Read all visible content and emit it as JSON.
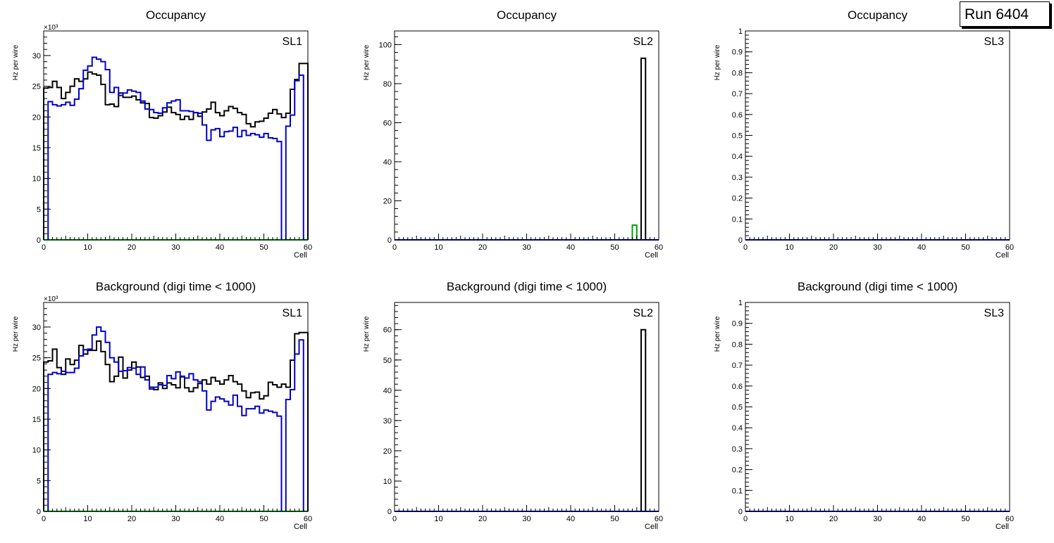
{
  "run_label": "Run 6404",
  "colors": {
    "black": "#000000",
    "blue": "#0000c8",
    "green": "#00a000",
    "axis": "#000000"
  },
  "chart_data": [
    {
      "type": "histogram",
      "title": "Occupancy",
      "label": "SL1",
      "xlabel": "Cell",
      "ylabel": "Hz per wire",
      "exponent_label": "×10³",
      "xlim": [
        0,
        60
      ],
      "ylim": [
        0,
        34
      ],
      "yticks": [
        0,
        5,
        10,
        15,
        20,
        25,
        30
      ],
      "series": [
        {
          "name": "black",
          "color": "#000000",
          "values": [
            24.7,
            24.8,
            25.8,
            24.8,
            23,
            24,
            25,
            26.2,
            25.8,
            26.2,
            27.3,
            27,
            26.8,
            25.3,
            22,
            22.1,
            21.7,
            23.9,
            23.2,
            23.2,
            23.4,
            22.8,
            22.3,
            22.2,
            19.9,
            19.8,
            20.2,
            20.8,
            21.6,
            20.7,
            20.4,
            19.6,
            20.1,
            19.6,
            20.7,
            20.1,
            20.8,
            21.3,
            22.4,
            20.7,
            20.2,
            21,
            21.7,
            21.4,
            20.7,
            20.4,
            18.9,
            18.4,
            19.2,
            19.3,
            19.8,
            20.6,
            21.2,
            20.5,
            19.9,
            20.6,
            24.5,
            26.1,
            28.7,
            28.7
          ]
        },
        {
          "name": "blue",
          "color": "#0000c8",
          "values": [
            0,
            22.5,
            22,
            21.8,
            22,
            22.4,
            21.9,
            22.9,
            24.6,
            27.6,
            28.3,
            29.7,
            29.4,
            29,
            27.7,
            24,
            24.8,
            23.5,
            23.9,
            24.4,
            24.2,
            24,
            22.6,
            21.3,
            21.2,
            20.7,
            20.6,
            21.5,
            22.3,
            22.6,
            22.8,
            21,
            21,
            20.9,
            20.7,
            20.6,
            18.7,
            16.2,
            17.9,
            18.1,
            16.8,
            17.6,
            17.7,
            18.3,
            16.8,
            17.8,
            17,
            17.3,
            17.1,
            16.7,
            17.3,
            16.6,
            16.5,
            16,
            0,
            18.5,
            20.3,
            25.9,
            26.8,
            0
          ]
        },
        {
          "name": "green",
          "color": "#00a000",
          "values": [
            0,
            0,
            0,
            0,
            0,
            0,
            0,
            0,
            0,
            0,
            0,
            0,
            0,
            0,
            0,
            0,
            0,
            0,
            0,
            0,
            0,
            0,
            0,
            0,
            0,
            0,
            0,
            0,
            0,
            0,
            0,
            0,
            0,
            0,
            0,
            0,
            0,
            0,
            0,
            0,
            0,
            0,
            0,
            0,
            0,
            0,
            0,
            0,
            0,
            0,
            0,
            0,
            0,
            0,
            0,
            0,
            0,
            0,
            0,
            0
          ]
        }
      ]
    },
    {
      "type": "histogram",
      "title": "Occupancy",
      "label": "SL2",
      "xlabel": "Cell",
      "ylabel": "Hz per wire",
      "exponent_label": "",
      "xlim": [
        0,
        60
      ],
      "ylim": [
        0,
        107
      ],
      "yticks": [
        0,
        20,
        40,
        60,
        80,
        100
      ],
      "series": [
        {
          "name": "black",
          "color": "#000000",
          "values": [
            0,
            0,
            0,
            0,
            0,
            0,
            0,
            0,
            0,
            0,
            0,
            0,
            0,
            0,
            0,
            0,
            0,
            0,
            0,
            0,
            0,
            0,
            0,
            0,
            0,
            0,
            0,
            0,
            0,
            0,
            0,
            0,
            0,
            0,
            0,
            0,
            0,
            0,
            0,
            0,
            0,
            0,
            0,
            0,
            0,
            0,
            0,
            0,
            0,
            0,
            0,
            0,
            0,
            0,
            0,
            0,
            93,
            0,
            0,
            0
          ]
        },
        {
          "name": "green",
          "color": "#00a000",
          "values": [
            0,
            0,
            0,
            0,
            0,
            0,
            0,
            0,
            0,
            0,
            0,
            0,
            0,
            0,
            0,
            0,
            0,
            0,
            0,
            0,
            0,
            0,
            0,
            0,
            0,
            0,
            0,
            0,
            0,
            0,
            0,
            0,
            0,
            0,
            0,
            0,
            0,
            0,
            0,
            0,
            0,
            0,
            0,
            0,
            0,
            0,
            0,
            0,
            0,
            0,
            0,
            0,
            0,
            0,
            7.5,
            0,
            0,
            0,
            0,
            0
          ]
        },
        {
          "name": "blue",
          "color": "#0000c8",
          "values": [
            0,
            0,
            0,
            0,
            0,
            0,
            0,
            0,
            0,
            0,
            0,
            0,
            0,
            0,
            0,
            0,
            0,
            0,
            0,
            0,
            0,
            0,
            0,
            0,
            0,
            0,
            0,
            0,
            0,
            0,
            0,
            0,
            0,
            0,
            0,
            0,
            0,
            0,
            0,
            0,
            0,
            0,
            0,
            0,
            0,
            0,
            0,
            0,
            0,
            0,
            0,
            0,
            0,
            0,
            0,
            0,
            0,
            0,
            0,
            0
          ]
        }
      ]
    },
    {
      "type": "histogram",
      "title": "Occupancy",
      "label": "SL3",
      "xlabel": "Cell",
      "ylabel": "Hz per wire",
      "exponent_label": "",
      "xlim": [
        0,
        60
      ],
      "ylim": [
        0,
        1
      ],
      "yticks": [
        0,
        0.1,
        0.2,
        0.3,
        0.4,
        0.5,
        0.6,
        0.7,
        0.8,
        0.9,
        1
      ],
      "series": [
        {
          "name": "blue",
          "color": "#0000c8",
          "values": [
            0,
            0,
            0,
            0,
            0,
            0,
            0,
            0,
            0,
            0,
            0,
            0,
            0,
            0,
            0,
            0,
            0,
            0,
            0,
            0,
            0,
            0,
            0,
            0,
            0,
            0,
            0,
            0,
            0,
            0,
            0,
            0,
            0,
            0,
            0,
            0,
            0,
            0,
            0,
            0,
            0,
            0,
            0,
            0,
            0,
            0,
            0,
            0,
            0,
            0,
            0,
            0,
            0,
            0,
            0,
            0,
            0,
            0,
            0,
            0
          ]
        }
      ]
    },
    {
      "type": "histogram",
      "title": "Background (digi time < 1000)",
      "label": "SL1",
      "xlabel": "Cell",
      "ylabel": "Hz per wire",
      "exponent_label": "×10³",
      "xlim": [
        0,
        60
      ],
      "ylim": [
        0,
        34
      ],
      "yticks": [
        0,
        5,
        10,
        15,
        20,
        25,
        30
      ],
      "series": [
        {
          "name": "black",
          "color": "#000000",
          "values": [
            24.3,
            24.5,
            26.4,
            23.4,
            22.3,
            24.8,
            23.9,
            24.6,
            27,
            25.6,
            26.2,
            26.2,
            27.7,
            26,
            23.9,
            21.1,
            22,
            25.1,
            21.7,
            23,
            24.3,
            23.5,
            21.8,
            22,
            20.2,
            19.8,
            20.9,
            20,
            20.9,
            20.6,
            20.1,
            21.9,
            20.1,
            19.5,
            20.1,
            20.8,
            21.4,
            20.7,
            21.8,
            21.2,
            20.7,
            21.4,
            22.1,
            21.1,
            20.7,
            19.6,
            18.5,
            19.3,
            19.4,
            18.3,
            18.8,
            21,
            20.6,
            20.2,
            20.7,
            20.2,
            24.6,
            28.9,
            29.1,
            29.1
          ]
        },
        {
          "name": "blue",
          "color": "#0000c8",
          "values": [
            0,
            22.3,
            22.6,
            22.4,
            22.8,
            22.6,
            22.6,
            23.3,
            25.3,
            26.3,
            26.4,
            28.7,
            30,
            29.3,
            27.5,
            25,
            24.3,
            22.8,
            22.9,
            23.4,
            23.3,
            22.3,
            23.5,
            21.4,
            19.9,
            20.2,
            20.6,
            20.5,
            22.1,
            21.6,
            22.7,
            22,
            21.7,
            22.4,
            21.4,
            21.1,
            19.6,
            16.5,
            17.9,
            18.6,
            18.3,
            17.9,
            17.3,
            18.9,
            17.1,
            15.6,
            16.7,
            16.7,
            17.1,
            16,
            16.5,
            16.3,
            16.1,
            15.5,
            0,
            18.2,
            19.8,
            25.6,
            27.9,
            0
          ]
        },
        {
          "name": "green",
          "color": "#00a000",
          "values": [
            0,
            0,
            0,
            0,
            0,
            0,
            0,
            0,
            0,
            0,
            0,
            0,
            0,
            0,
            0,
            0,
            0,
            0,
            0,
            0,
            0,
            0,
            0,
            0,
            0,
            0,
            0,
            0,
            0,
            0,
            0,
            0,
            0,
            0,
            0,
            0,
            0,
            0,
            0,
            0,
            0,
            0,
            0,
            0,
            0,
            0,
            0,
            0,
            0,
            0,
            0,
            0,
            0,
            0,
            0,
            0,
            0,
            0,
            0,
            0
          ]
        }
      ]
    },
    {
      "type": "histogram",
      "title": "Background (digi time < 1000)",
      "label": "SL2",
      "xlabel": "Cell",
      "ylabel": "Hz per wire",
      "exponent_label": "",
      "xlim": [
        0,
        60
      ],
      "ylim": [
        0,
        69
      ],
      "yticks": [
        0,
        10,
        20,
        30,
        40,
        50,
        60
      ],
      "series": [
        {
          "name": "black",
          "color": "#000000",
          "values": [
            0,
            0,
            0,
            0,
            0,
            0,
            0,
            0,
            0,
            0,
            0,
            0,
            0,
            0,
            0,
            0,
            0,
            0,
            0,
            0,
            0,
            0,
            0,
            0,
            0,
            0,
            0,
            0,
            0,
            0,
            0,
            0,
            0,
            0,
            0,
            0,
            0,
            0,
            0,
            0,
            0,
            0,
            0,
            0,
            0,
            0,
            0,
            0,
            0,
            0,
            0,
            0,
            0,
            0,
            0,
            0,
            60,
            0,
            0,
            0
          ]
        },
        {
          "name": "blue",
          "color": "#0000c8",
          "values": [
            0,
            0,
            0,
            0,
            0,
            0,
            0,
            0,
            0,
            0,
            0,
            0,
            0,
            0,
            0,
            0,
            0,
            0,
            0,
            0,
            0,
            0,
            0,
            0,
            0,
            0,
            0,
            0,
            0,
            0,
            0,
            0,
            0,
            0,
            0,
            0,
            0,
            0,
            0,
            0,
            0,
            0,
            0,
            0,
            0,
            0,
            0,
            0,
            0,
            0,
            0,
            0,
            0,
            0,
            0,
            0,
            0,
            0,
            0,
            0
          ]
        }
      ]
    },
    {
      "type": "histogram",
      "title": "Background (digi time < 1000)",
      "label": "SL3",
      "xlabel": "Cell",
      "ylabel": "Hz per wire",
      "exponent_label": "",
      "xlim": [
        0,
        60
      ],
      "ylim": [
        0,
        1
      ],
      "yticks": [
        0,
        0.1,
        0.2,
        0.3,
        0.4,
        0.5,
        0.6,
        0.7,
        0.8,
        0.9,
        1
      ],
      "series": [
        {
          "name": "blue",
          "color": "#0000c8",
          "values": [
            0,
            0,
            0,
            0,
            0,
            0,
            0,
            0,
            0,
            0,
            0,
            0,
            0,
            0,
            0,
            0,
            0,
            0,
            0,
            0,
            0,
            0,
            0,
            0,
            0,
            0,
            0,
            0,
            0,
            0,
            0,
            0,
            0,
            0,
            0,
            0,
            0,
            0,
            0,
            0,
            0,
            0,
            0,
            0,
            0,
            0,
            0,
            0,
            0,
            0,
            0,
            0,
            0,
            0,
            0,
            0,
            0,
            0,
            0,
            0
          ]
        }
      ]
    }
  ]
}
